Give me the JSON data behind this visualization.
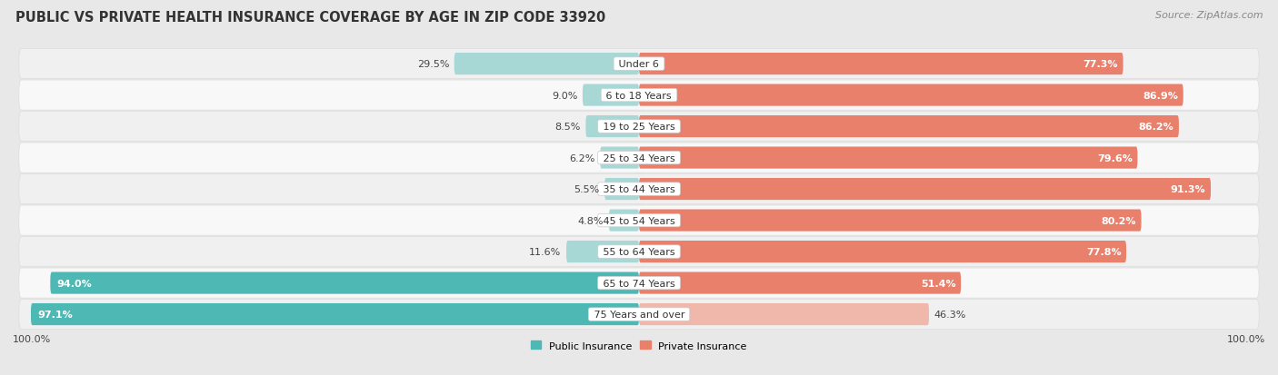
{
  "title": "PUBLIC VS PRIVATE HEALTH INSURANCE COVERAGE BY AGE IN ZIP CODE 33920",
  "source": "Source: ZipAtlas.com",
  "categories": [
    "Under 6",
    "6 to 18 Years",
    "19 to 25 Years",
    "25 to 34 Years",
    "35 to 44 Years",
    "45 to 54 Years",
    "55 to 64 Years",
    "65 to 74 Years",
    "75 Years and over"
  ],
  "public_values": [
    29.5,
    9.0,
    8.5,
    6.2,
    5.5,
    4.8,
    11.6,
    94.0,
    97.1
  ],
  "private_values": [
    77.3,
    86.9,
    86.2,
    79.6,
    91.3,
    80.2,
    77.8,
    51.4,
    46.3
  ],
  "public_color": "#4eb8b4",
  "private_color": "#e8806c",
  "public_color_light": "#a8d8d6",
  "private_color_light": "#f0b8aa",
  "row_color_odd": "#f7f7f7",
  "row_color_even": "#efefef",
  "bg_color": "#e8e8e8",
  "axis_label_left": "100.0%",
  "axis_label_right": "100.0%",
  "title_fontsize": 10.5,
  "bar_fontsize": 8,
  "label_fontsize": 8,
  "legend_fontsize": 8,
  "source_fontsize": 8
}
